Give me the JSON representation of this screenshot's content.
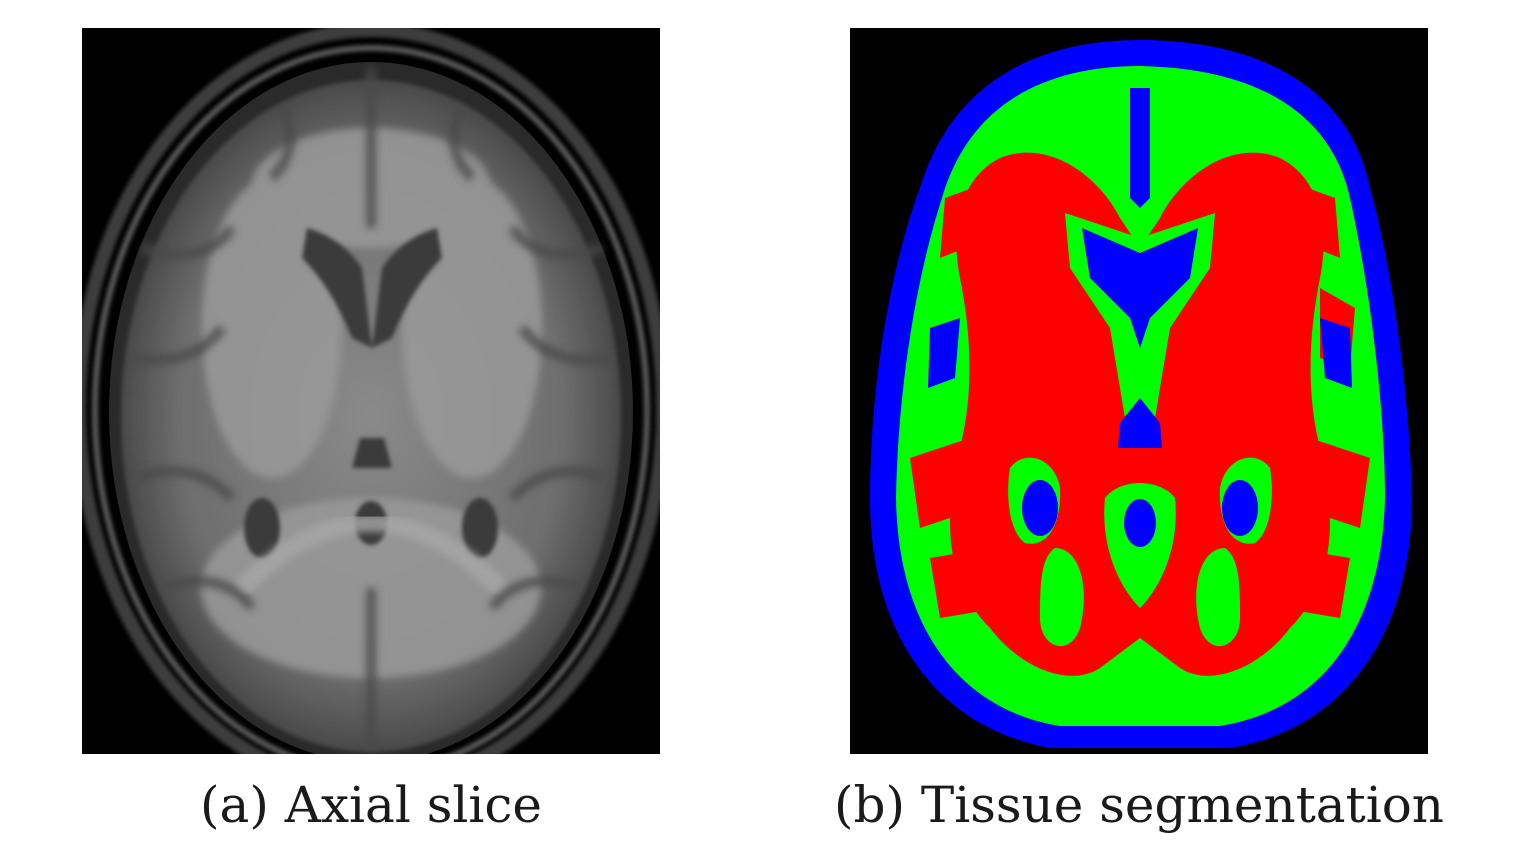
{
  "figure": {
    "panels": [
      {
        "caption": "(a) Axial slice",
        "image": "axial-mri-slice-grayscale"
      },
      {
        "caption": "(b) Tissue segmentation",
        "image": "brain-tissue-segmentation-map"
      }
    ],
    "segmentation_colors": {
      "background": "#000000",
      "outer": "#0000ff",
      "middle": "#00ff00",
      "inner": "#ff0000"
    }
  }
}
